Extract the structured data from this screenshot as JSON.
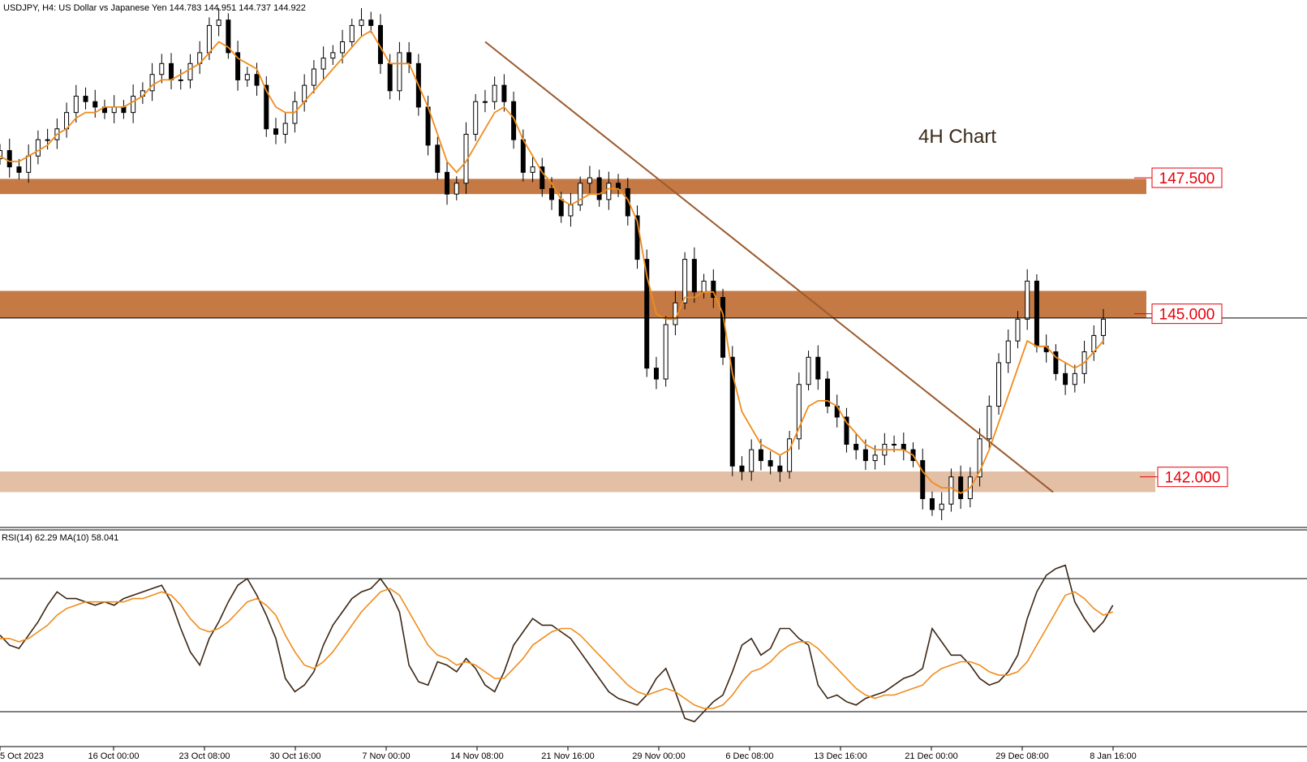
{
  "chart_data": [
    {
      "type": "candlestick",
      "title": "USDJPY, H4:  US Dollar vs Japanese Yen  144.783 144.951 144.737 144.922",
      "annotation": "4H Chart",
      "current_price": 144.922,
      "ylim": [
        141.1,
        150.5
      ],
      "x_ticks": [
        "5 Oct 2023",
        "16 Oct 00:00",
        "23 Oct 08:00",
        "30 Oct 16:00",
        "7 Nov 00:00",
        "14 Nov 08:00",
        "21 Nov 16:00",
        "29 Nov 00:00",
        "6 Dec 08:00",
        "13 Dec 16:00",
        "21 Dec 00:00",
        "29 Dec 08:00",
        "8 Jan 16:00"
      ],
      "levels": [
        {
          "label": "147.500",
          "value": 147.5,
          "zone": [
            147.2,
            147.48
          ],
          "color": "#c57a45"
        },
        {
          "label": "145.000",
          "value": 145.0,
          "zone": [
            144.92,
            145.42
          ],
          "color": "#c57a45"
        },
        {
          "label": "142.000",
          "value": 142.0,
          "zone": [
            141.72,
            142.1
          ],
          "color": "#e3bfa6"
        }
      ],
      "trendline": {
        "from": [
          "14 Nov 08:00",
          150.0
        ],
        "to": [
          "2 Jan 2024",
          141.72
        ],
        "color": "#9b5a2e"
      },
      "series": [
        {
          "role": "price",
          "color": "#000000",
          "x_start": 0,
          "values": [
            148.0,
            147.7,
            147.6,
            147.9,
            148.2,
            148.2,
            148.4,
            148.7,
            149.0,
            148.9,
            148.8,
            148.7,
            148.8,
            148.7,
            149.0,
            149.1,
            149.4,
            149.6,
            149.3,
            149.3,
            149.6,
            149.8,
            150.3,
            150.4,
            149.8,
            149.3,
            149.4,
            149.2,
            148.4,
            148.3,
            148.5,
            148.9,
            149.2,
            149.5,
            149.7,
            149.8,
            150.0,
            150.3,
            150.4,
            150.3,
            149.6,
            149.1,
            149.8,
            149.6,
            148.8,
            148.1,
            147.6,
            147.2,
            147.4,
            148.3,
            148.9,
            148.9,
            149.2,
            148.9,
            148.2,
            147.6,
            147.7,
            147.3,
            147.1,
            146.8,
            147.0,
            147.4,
            147.5,
            147.1,
            147.4,
            147.3,
            146.8,
            146.0,
            144.0,
            143.8,
            144.8,
            145.2,
            146.0,
            145.4,
            145.6,
            145.3,
            144.2,
            142.2,
            142.1,
            142.5,
            142.3,
            142.2,
            142.1,
            142.7,
            143.7,
            144.2,
            143.8,
            143.3,
            143.1,
            142.6,
            142.5,
            142.3,
            142.4,
            142.6,
            142.6,
            142.5,
            142.3,
            141.6,
            141.4,
            141.5,
            142.0,
            141.6,
            142.0,
            142.7,
            143.3,
            144.1,
            144.5,
            144.9,
            145.6,
            144.4,
            144.3,
            143.9,
            143.7,
            143.9,
            144.3,
            144.6,
            144.9
          ]
        },
        {
          "role": "ma",
          "color": "#f08c1c",
          "x_start": 0,
          "values": [
            147.9,
            147.8,
            147.8,
            147.9,
            148.0,
            148.1,
            148.3,
            148.4,
            148.6,
            148.7,
            148.7,
            148.8,
            148.8,
            148.8,
            148.9,
            149.0,
            149.2,
            149.3,
            149.3,
            149.4,
            149.5,
            149.6,
            149.8,
            150.0,
            149.9,
            149.7,
            149.6,
            149.5,
            149.1,
            148.8,
            148.7,
            148.7,
            148.9,
            149.1,
            149.3,
            149.5,
            149.7,
            149.9,
            150.1,
            150.2,
            149.9,
            149.6,
            149.6,
            149.6,
            149.2,
            148.8,
            148.3,
            147.8,
            147.6,
            147.8,
            148.1,
            148.4,
            148.7,
            148.8,
            148.6,
            148.2,
            147.9,
            147.6,
            147.4,
            147.1,
            147.0,
            147.1,
            147.2,
            147.2,
            147.3,
            147.3,
            147.1,
            146.7,
            145.7,
            145.0,
            144.9,
            144.9,
            145.3,
            145.3,
            145.4,
            145.4,
            145.0,
            143.9,
            143.2,
            142.9,
            142.6,
            142.5,
            142.4,
            142.5,
            142.9,
            143.3,
            143.4,
            143.4,
            143.3,
            143.0,
            142.8,
            142.6,
            142.5,
            142.5,
            142.5,
            142.5,
            142.4,
            142.1,
            141.9,
            141.8,
            141.8,
            141.7,
            141.8,
            142.1,
            142.5,
            143.0,
            143.5,
            144.0,
            144.5,
            144.4,
            144.4,
            144.2,
            144.1,
            144.0,
            144.1,
            144.3,
            144.5
          ]
        }
      ]
    },
    {
      "type": "line",
      "title": "RSI(14) 62.29 MA(10) 58.041",
      "ylim": [
        20,
        80
      ],
      "levels": [
        70,
        30
      ],
      "series": [
        {
          "role": "rsi",
          "color": "#3b2614",
          "x_start": 0,
          "values": [
            53,
            50,
            49,
            53,
            57,
            62,
            66,
            64,
            64,
            63,
            62,
            63,
            62,
            64,
            65,
            66,
            67,
            68,
            63,
            55,
            48,
            44,
            52,
            57,
            63,
            68,
            70,
            65,
            59,
            52,
            40,
            36,
            38,
            42,
            50,
            56,
            60,
            64,
            66,
            67,
            70,
            66,
            60,
            44,
            39,
            38,
            45,
            44,
            42,
            46,
            43,
            38,
            36,
            42,
            50,
            54,
            58,
            56,
            56,
            54,
            52,
            48,
            44,
            40,
            36,
            34,
            33,
            32,
            35,
            40,
            43,
            36,
            28,
            27,
            30,
            33,
            35,
            42,
            50,
            52,
            47,
            49,
            55,
            55,
            52,
            50,
            38,
            34,
            35,
            33,
            32,
            34,
            35,
            36,
            38,
            40,
            41,
            43,
            55,
            51,
            47,
            47,
            44,
            40,
            38,
            39,
            42,
            47,
            58,
            66,
            71,
            73,
            74,
            63,
            58,
            54,
            57,
            62
          ]
        },
        {
          "role": "ma",
          "color": "#f08c1c",
          "x_start": 0,
          "values": [
            52,
            52,
            51,
            52,
            54,
            56,
            59,
            61,
            62,
            63,
            63,
            63,
            63,
            63,
            64,
            64,
            65,
            66,
            65,
            62,
            58,
            55,
            54,
            55,
            57,
            60,
            63,
            64,
            62,
            59,
            53,
            48,
            44,
            43,
            45,
            48,
            52,
            56,
            60,
            63,
            66,
            67,
            65,
            60,
            55,
            50,
            47,
            46,
            44,
            45,
            44,
            42,
            40,
            40,
            43,
            46,
            50,
            52,
            54,
            55,
            55,
            53,
            50,
            47,
            44,
            41,
            38,
            36,
            35,
            36,
            37,
            36,
            34,
            32,
            31,
            31,
            32,
            35,
            39,
            42,
            43,
            45,
            48,
            50,
            51,
            51,
            49,
            46,
            43,
            40,
            37,
            35,
            34,
            35,
            35,
            36,
            37,
            38,
            41,
            43,
            44,
            45,
            45,
            44,
            42,
            41,
            41,
            42,
            45,
            50,
            55,
            60,
            65,
            66,
            64,
            61,
            59,
            60
          ]
        }
      ]
    }
  ]
}
